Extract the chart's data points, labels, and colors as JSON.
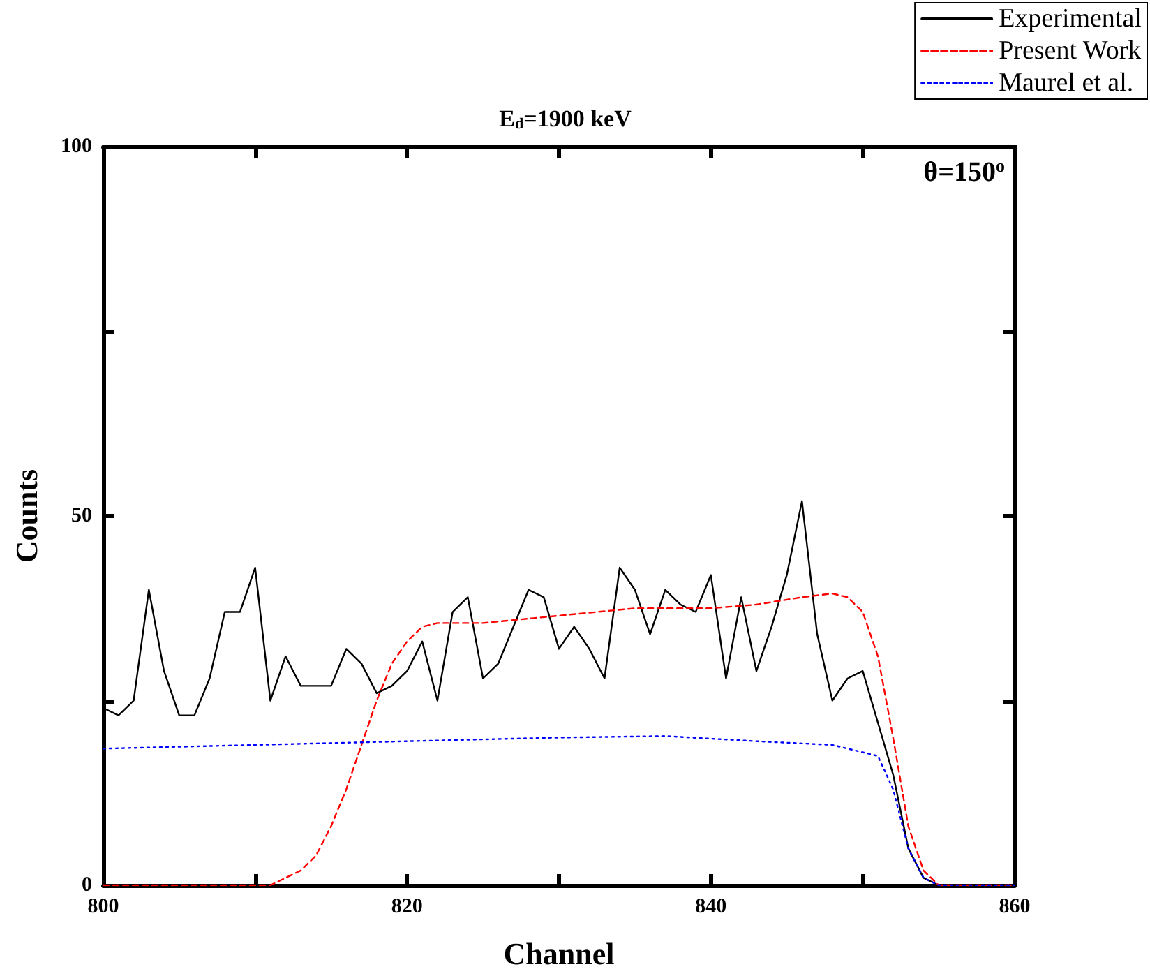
{
  "chart_data": {
    "type": "line",
    "title": "E$_{d}$=1900 keV",
    "xlabel": "Channel",
    "ylabel": "Counts",
    "annotations": [
      "θ=150$^{o}$"
    ],
    "xlim": [
      800,
      860
    ],
    "xticks": [
      800,
      {
        "value": 810,
        "label": null
      },
      820,
      {
        "value": 830,
        "label": null
      },
      840,
      {
        "value": 850,
        "label": null
      },
      860
    ],
    "ylim": [
      0,
      100
    ],
    "yticks": [
      0,
      {
        "value": 25,
        "label": null
      },
      50,
      {
        "value": 75,
        "label": null
      },
      100
    ],
    "grid": false,
    "legend": "top right",
    "marker": "none",
    "series": [
      {
        "name": "Experimental",
        "color": "#000000",
        "line_style": "solid",
        "x": [
          800,
          801,
          802,
          803,
          804,
          805,
          806,
          807,
          808,
          809,
          810,
          811,
          812,
          813,
          814,
          815,
          816,
          817,
          818,
          819,
          820,
          821,
          822,
          823,
          824,
          825,
          826,
          827,
          828,
          829,
          830,
          831,
          832,
          833,
          834,
          835,
          836,
          837,
          838,
          839,
          840,
          841,
          842,
          843,
          844,
          845,
          846,
          847,
          848,
          849,
          850,
          851,
          852,
          853,
          854,
          855,
          856,
          857,
          858,
          859,
          860
        ],
        "values": [
          24,
          23,
          25,
          40,
          29,
          23,
          23,
          28,
          37,
          37,
          43,
          25,
          31,
          27,
          27,
          27,
          32,
          30,
          26,
          27,
          29,
          33,
          25,
          37,
          39,
          28,
          30,
          35,
          40,
          39,
          32,
          35,
          32,
          28,
          43,
          40,
          34,
          40,
          38,
          37,
          42,
          28,
          39,
          29,
          35,
          42,
          52,
          34,
          25,
          28,
          29,
          22,
          15,
          5,
          1,
          0,
          0,
          0,
          0,
          0,
          0
        ]
      },
      {
        "name": "Present Work",
        "color": "#ff0000",
        "line_style": "dashed",
        "x": [
          800,
          811,
          812,
          813,
          814,
          815,
          816,
          817,
          818,
          819,
          820,
          821,
          822,
          825,
          830,
          835,
          840,
          843,
          846,
          848,
          849,
          850,
          851,
          852,
          853,
          854,
          855,
          860
        ],
        "values": [
          0,
          0,
          1,
          2,
          4,
          8,
          13,
          19,
          25,
          30,
          33,
          35,
          35.5,
          35.5,
          36.5,
          37.5,
          37.5,
          38,
          39,
          39.5,
          39,
          37,
          31,
          20,
          8,
          2,
          0,
          0
        ]
      },
      {
        "name": "Maurel et al.",
        "color": "#0000ff",
        "line_style": "dotted",
        "x": [
          800,
          810,
          820,
          830,
          837,
          843,
          848,
          851,
          852,
          853,
          854,
          855,
          860
        ],
        "values": [
          18.5,
          19,
          19.5,
          20,
          20.2,
          19.5,
          19,
          17.5,
          13,
          5,
          1,
          0,
          0
        ]
      }
    ]
  }
}
